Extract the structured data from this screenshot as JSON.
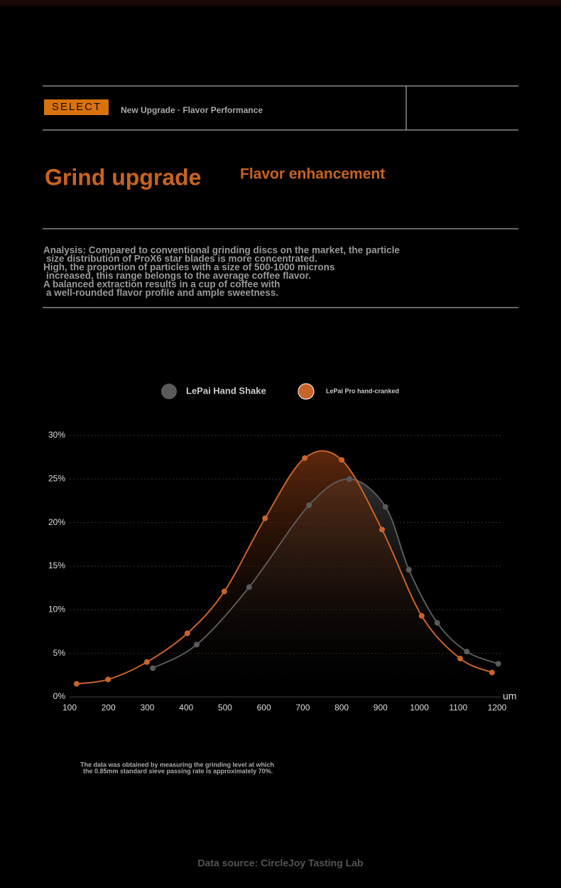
{
  "header": {
    "badge": "SELECT",
    "tagline": "New Upgrade · Flavor Performance",
    "title": "Grind upgrade",
    "subtitle": "Flavor enhancement"
  },
  "analysis": [
    "Analysis: Compared to conventional grinding discs on the market, the particle",
    "size distribution of ProX6 star blades is more concentrated.",
    "High, the proportion of particles with a size of 500-1000 microns",
    "increased, this range belongs to the average coffee flavor.",
    "A balanced extraction results in a cup of coffee with",
    "a well-rounded flavor profile and ample sweetness."
  ],
  "chart_data": {
    "type": "line",
    "xlabel": "um",
    "series": [
      {
        "name": "LePai Hand Shake",
        "color": "#5a5a5a",
        "x": [
          314,
          427,
          562,
          716,
          820,
          913,
          973,
          1046,
          1122,
          1203
        ],
        "values": [
          3.3,
          6.0,
          12.6,
          22.0,
          25.0,
          21.8,
          14.6,
          8.5,
          5.2,
          3.8
        ]
      },
      {
        "name": "LePai Pro hand-cranked",
        "color": "#c8642a",
        "x": [
          118,
          199,
          299,
          403,
          498,
          603,
          705,
          800,
          904,
          1006,
          1105,
          1187
        ],
        "values": [
          1.5,
          2.0,
          4.0,
          7.3,
          12.1,
          20.5,
          27.4,
          27.2,
          19.2,
          9.3,
          4.4,
          2.8
        ]
      }
    ],
    "xlim": [
      100,
      1200
    ],
    "xticks": [
      100,
      200,
      300,
      400,
      500,
      600,
      700,
      800,
      900,
      1000,
      1100,
      1200
    ],
    "ylim": [
      0,
      30
    ],
    "yticks": [
      {
        "value": 0,
        "label": "0%"
      },
      {
        "value": 5,
        "label": "5%"
      },
      {
        "value": 10,
        "label": "10%"
      },
      {
        "value": 15,
        "label": "15%"
      },
      {
        "value": 20,
        "label": "20%"
      },
      {
        "value": 25,
        "label": "25%"
      },
      {
        "value": 30,
        "label": "30%"
      }
    ],
    "grid": true
  },
  "footnote": [
    "The data was obtained by measuring the grinding level at which",
    "the 0.85mm standard sieve passing rate is approximately 70%."
  ],
  "source": "Data source: CircleJoy Tasting Lab"
}
